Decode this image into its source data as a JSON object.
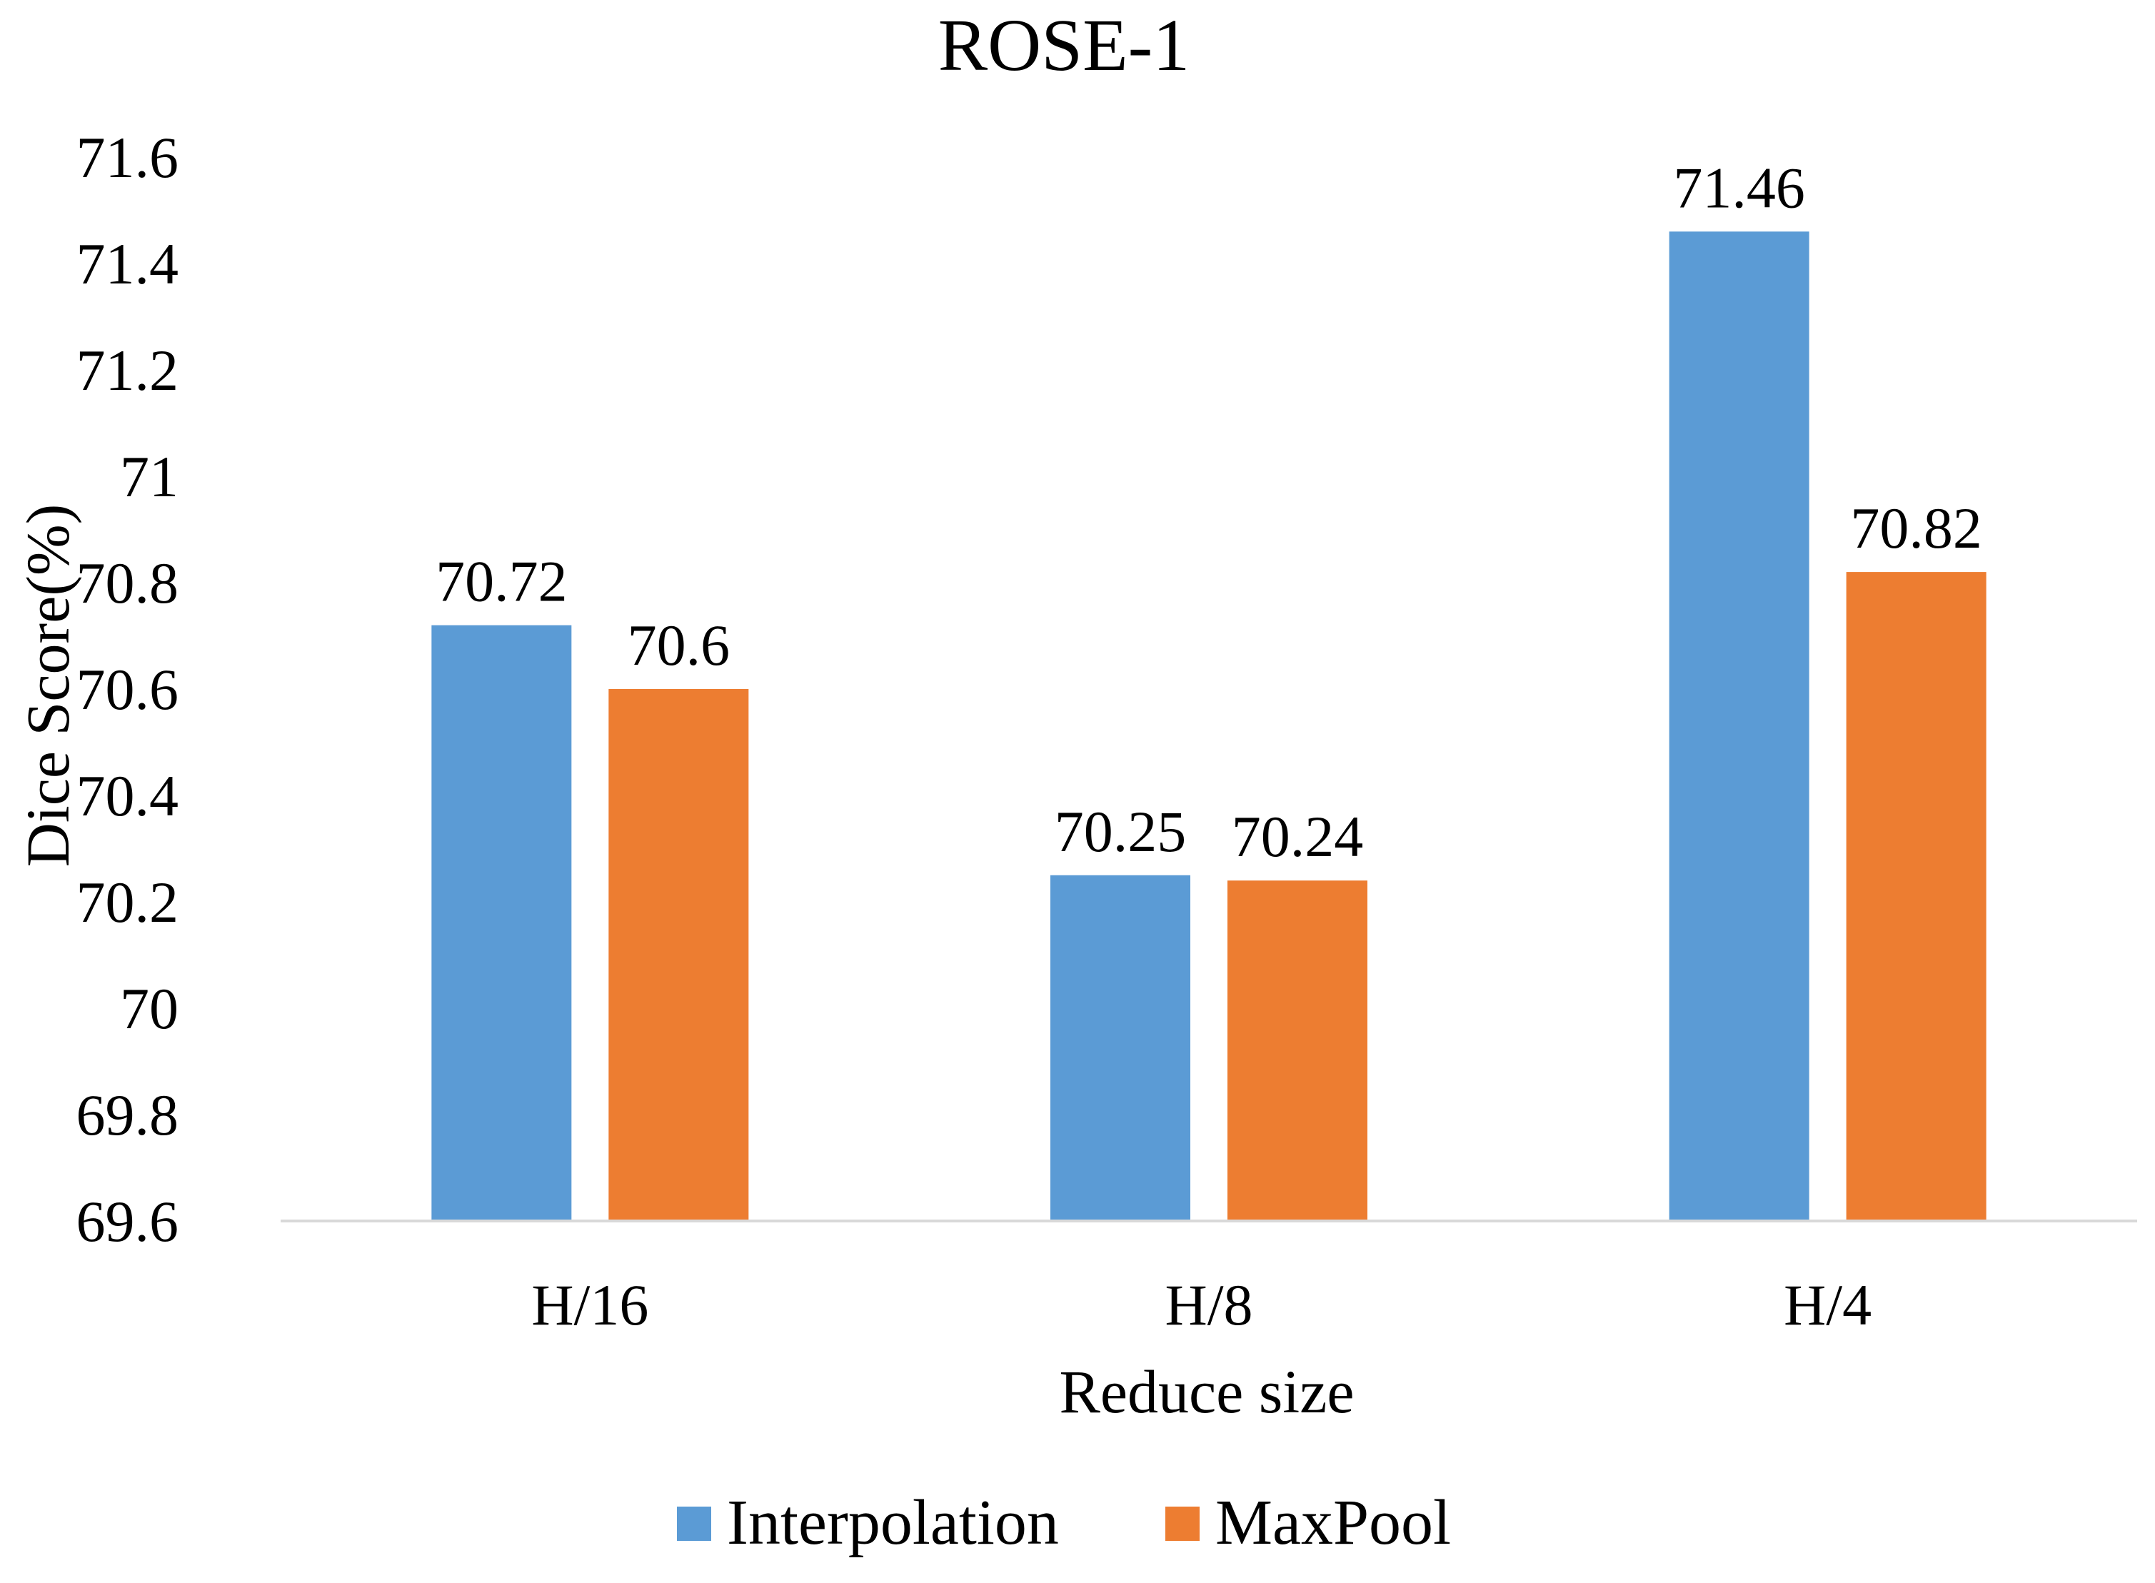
{
  "chart_data": {
    "type": "bar",
    "title": "ROSE-1",
    "xlabel": "Reduce size",
    "ylabel": "Dice Score(%)",
    "categories": [
      "H/16",
      "H/8",
      "H/4"
    ],
    "ylim": [
      69.6,
      71.6
    ],
    "yticks": [
      "69.6",
      "69.8",
      "70",
      "70.2",
      "70.4",
      "70.6",
      "70.8",
      "71",
      "71.2",
      "71.4",
      "71.6"
    ],
    "grid": false,
    "legend_position": "bottom-center",
    "series": [
      {
        "name": "Interpolation",
        "color": "#5b9bd5",
        "values": [
          70.72,
          70.25,
          71.46
        ],
        "labels": [
          "70.72",
          "70.25",
          "71.46"
        ]
      },
      {
        "name": "MaxPool",
        "color": "#ed7d31",
        "values": [
          70.6,
          70.24,
          70.82
        ],
        "labels": [
          "70.6",
          "70.24",
          "70.82"
        ]
      }
    ]
  }
}
